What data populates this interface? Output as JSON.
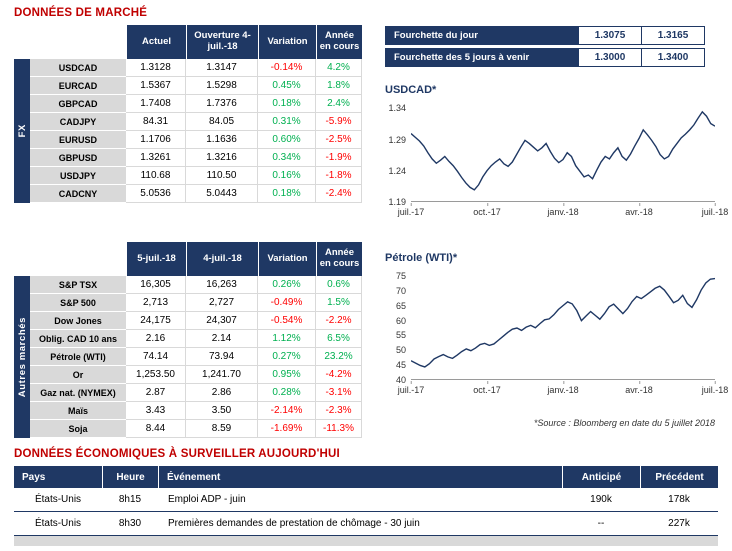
{
  "titles": {
    "market": "DONNÉES DE MARCHÉ",
    "econ": "DONNÉES ÉCONOMIQUES À SURVEILLER AUJOURD'HUI",
    "source_note": "*Source : Bloomberg en date du 5 juillet 2018"
  },
  "colors": {
    "navy": "#1F3864",
    "red_title": "#C00000",
    "pos": "#00B050",
    "neg": "#FF0000",
    "label_bg": "#D9D9D9"
  },
  "fourchette": {
    "rows": [
      {
        "label": "Fourchette du jour",
        "low": "1.3075",
        "high": "1.3165"
      },
      {
        "label": "Fourchette des 5 jours à venir",
        "low": "1.3000",
        "high": "1.3400"
      }
    ]
  },
  "fx_table": {
    "group_label": "FX",
    "headers": [
      "Actuel",
      "Ouverture 4-juil.-18",
      "Variation",
      "Année en cours"
    ],
    "rows": [
      [
        "USDCAD",
        "1.3128",
        "1.3147",
        "-0.14%",
        "4.2%"
      ],
      [
        "EURCAD",
        "1.5367",
        "1.5298",
        "0.45%",
        "1.8%"
      ],
      [
        "GBPCAD",
        "1.7408",
        "1.7376",
        "0.18%",
        "2.4%"
      ],
      [
        "CADJPY",
        "84.31",
        "84.05",
        "0.31%",
        "-5.9%"
      ],
      [
        "EURUSD",
        "1.1706",
        "1.1636",
        "0.60%",
        "-2.5%"
      ],
      [
        "GBPUSD",
        "1.3261",
        "1.3216",
        "0.34%",
        "-1.9%"
      ],
      [
        "USDJPY",
        "110.68",
        "110.50",
        "0.16%",
        "-1.8%"
      ],
      [
        "CADCNY",
        "5.0536",
        "5.0443",
        "0.18%",
        "-2.4%"
      ]
    ]
  },
  "markets_table": {
    "group_label": "Autres marchés",
    "headers": [
      "5-juil.-18",
      "4-juil.-18",
      "Variation",
      "Année en cours"
    ],
    "rows": [
      [
        "S&P TSX",
        "16,305",
        "16,263",
        "0.26%",
        "0.6%"
      ],
      [
        "S&P 500",
        "2,713",
        "2,727",
        "-0.49%",
        "1.5%"
      ],
      [
        "Dow Jones",
        "24,175",
        "24,307",
        "-0.54%",
        "-2.2%"
      ],
      [
        "Oblig. CAD 10 ans",
        "2.16",
        "2.14",
        "1.12%",
        "6.5%"
      ],
      [
        "Pétrole (WTI)",
        "74.14",
        "73.94",
        "0.27%",
        "23.2%"
      ],
      [
        "Or",
        "1,253.50",
        "1,241.70",
        "0.95%",
        "-4.2%"
      ],
      [
        "Gaz nat. (NYMEX)",
        "2.87",
        "2.86",
        "0.28%",
        "-3.1%"
      ],
      [
        "Maïs",
        "3.43",
        "3.50",
        "-2.14%",
        "-2.3%"
      ],
      [
        "Soja",
        "8.44",
        "8.59",
        "-1.69%",
        "-11.3%"
      ]
    ]
  },
  "econ_table": {
    "headers": [
      "Pays",
      "Heure",
      "Événement",
      "Anticipé",
      "Précédent"
    ],
    "rows": [
      [
        "États-Unis",
        "8h15",
        "Emploi ADP - juin",
        "190k",
        "178k"
      ],
      [
        "États-Unis",
        "8h30",
        "Premières demandes de prestation de chômage - 30 juin",
        "--",
        "227k"
      ]
    ]
  },
  "chart_data": [
    {
      "type": "line",
      "title": "USDCAD*",
      "x_ticks": [
        "juil.-17",
        "oct.-17",
        "janv.-18",
        "avr.-18",
        "juil.-18"
      ],
      "y_ticks": [
        1.19,
        1.24,
        1.29,
        1.34
      ],
      "ylim": [
        1.19,
        1.35
      ],
      "grid": false,
      "legend": "none",
      "series": [
        {
          "name": "USDCAD",
          "values": [
            1.299,
            1.293,
            1.287,
            1.279,
            1.268,
            1.258,
            1.251,
            1.256,
            1.262,
            1.254,
            1.247,
            1.238,
            1.228,
            1.219,
            1.212,
            1.208,
            1.216,
            1.229,
            1.239,
            1.247,
            1.253,
            1.258,
            1.25,
            1.246,
            1.253,
            1.265,
            1.277,
            1.288,
            1.283,
            1.277,
            1.271,
            1.276,
            1.283,
            1.27,
            1.259,
            1.252,
            1.257,
            1.268,
            1.262,
            1.247,
            1.238,
            1.229,
            1.232,
            1.226,
            1.24,
            1.253,
            1.262,
            1.258,
            1.268,
            1.276,
            1.262,
            1.256,
            1.266,
            1.279,
            1.291,
            1.305,
            1.297,
            1.288,
            1.278,
            1.265,
            1.258,
            1.262,
            1.274,
            1.283,
            1.292,
            1.298,
            1.305,
            1.313,
            1.324,
            1.334,
            1.327,
            1.315,
            1.311
          ]
        }
      ]
    },
    {
      "type": "line",
      "title": "Pétrole (WTI)*",
      "x_ticks": [
        "juil.-17",
        "oct.-17",
        "janv.-18",
        "avr.-18",
        "juil.-18"
      ],
      "y_ticks": [
        40,
        45,
        50,
        55,
        60,
        65,
        70,
        75
      ],
      "ylim": [
        40,
        77
      ],
      "grid": false,
      "legend": "none",
      "series": [
        {
          "name": "WTI",
          "values": [
            46.2,
            45.4,
            44.6,
            44.1,
            45.2,
            46.8,
            47.6,
            48.3,
            47.5,
            47.0,
            48.1,
            49.3,
            50.2,
            49.6,
            50.5,
            51.7,
            52.1,
            51.4,
            51.9,
            53.2,
            54.5,
            55.8,
            56.9,
            57.3,
            56.5,
            57.6,
            58.2,
            57.4,
            58.8,
            60.1,
            60.4,
            61.8,
            63.6,
            64.9,
            66.2,
            65.5,
            63.2,
            59.8,
            61.4,
            62.9,
            61.6,
            60.3,
            62.2,
            64.5,
            65.4,
            63.8,
            62.2,
            63.9,
            66.3,
            68.0,
            67.3,
            68.4,
            69.6,
            70.8,
            71.5,
            70.2,
            68.1,
            65.9,
            66.7,
            68.4,
            65.6,
            64.3,
            66.9,
            70.2,
            72.6,
            73.9,
            74.1
          ]
        }
      ]
    }
  ]
}
